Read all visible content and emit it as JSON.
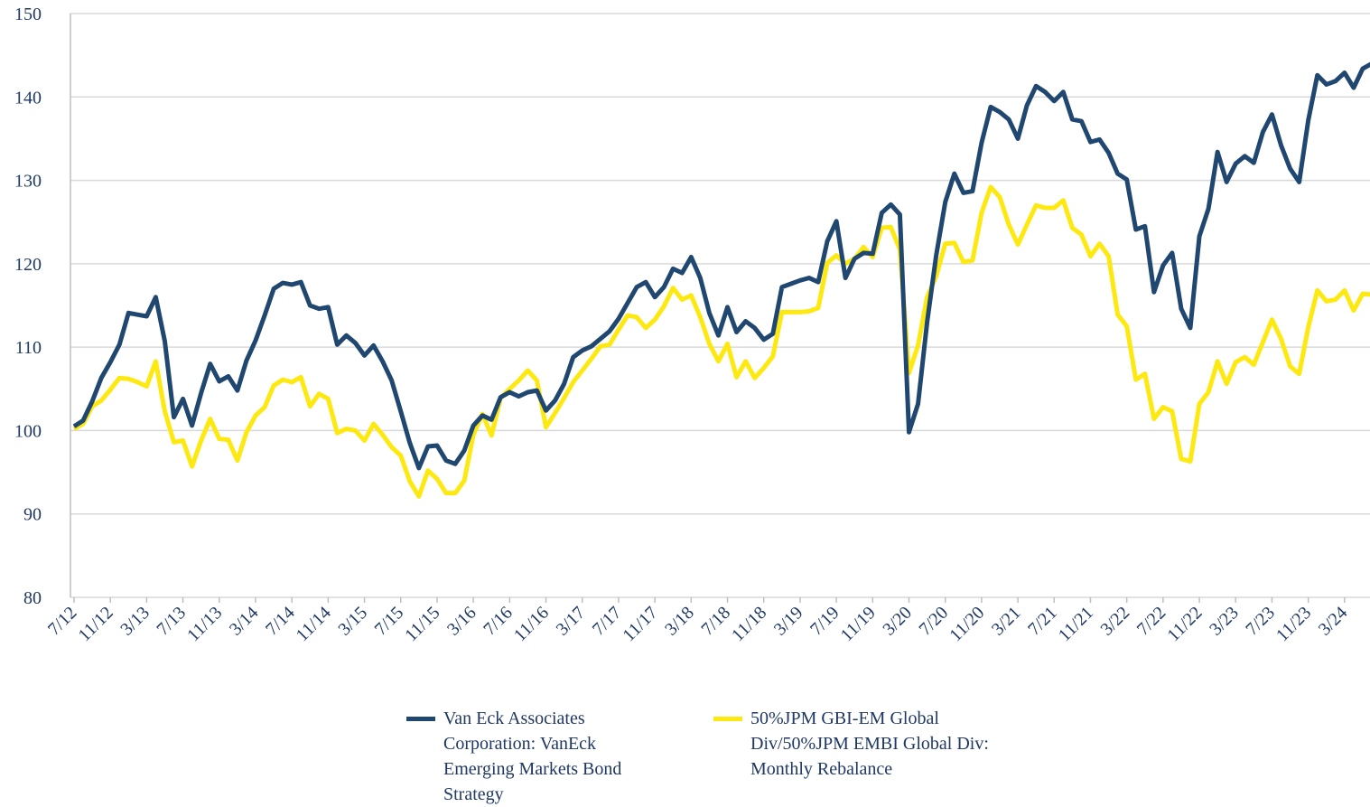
{
  "chart_data": {
    "type": "line",
    "categories": [
      "7/12",
      null,
      null,
      null,
      "11/12",
      null,
      null,
      null,
      "3/13",
      null,
      null,
      null,
      "7/13",
      null,
      null,
      null,
      "11/13",
      null,
      null,
      null,
      "3/14",
      null,
      null,
      null,
      "7/14",
      null,
      null,
      null,
      "11/14",
      null,
      null,
      null,
      "3/15",
      null,
      null,
      null,
      "7/15",
      null,
      null,
      null,
      "11/15",
      null,
      null,
      null,
      "3/16",
      null,
      null,
      null,
      "7/16",
      null,
      null,
      null,
      "11/16",
      null,
      null,
      null,
      "3/17",
      null,
      null,
      null,
      "7/17",
      null,
      null,
      null,
      "11/17",
      null,
      null,
      null,
      "3/18",
      null,
      null,
      null,
      "7/18",
      null,
      null,
      null,
      "11/18",
      null,
      null,
      null,
      "3/19",
      null,
      null,
      null,
      "7/19",
      null,
      null,
      null,
      "11/19",
      null,
      null,
      null,
      "3/20",
      null,
      null,
      null,
      "7/20",
      null,
      null,
      null,
      "11/20",
      null,
      null,
      null,
      "3/21",
      null,
      null,
      null,
      "7/21",
      null,
      null,
      null,
      "11/21",
      null,
      null,
      null,
      "3/22",
      null,
      null,
      null,
      "7/22",
      null,
      null,
      null,
      "11/22",
      null,
      null,
      null,
      "3/23",
      null,
      null,
      null,
      "7/23",
      null,
      null,
      null,
      "11/23",
      null,
      null,
      null,
      "3/24",
      null,
      null,
      null
    ],
    "series": [
      {
        "name": "Van Eck Associates Corporation: VanEck Emerging Markets Bond Strategy",
        "color": "#1f4770",
        "values": [
          100.5,
          101.2,
          103.5,
          106.3,
          108.2,
          110.3,
          114.1,
          113.9,
          113.7,
          116.0,
          110.7,
          101.6,
          103.8,
          100.6,
          104.5,
          108.0,
          105.9,
          106.5,
          104.8,
          108.4,
          110.8,
          113.8,
          117.0,
          117.7,
          117.5,
          117.8,
          115.0,
          114.6,
          114.8,
          110.3,
          111.4,
          110.5,
          109.0,
          110.2,
          108.3,
          106.0,
          102.3,
          98.5,
          95.5,
          98.1,
          98.2,
          96.4,
          96.0,
          97.6,
          100.6,
          101.8,
          101.3,
          104.0,
          104.6,
          104.1,
          104.6,
          104.8,
          102.4,
          103.6,
          105.6,
          108.8,
          109.6,
          110.1,
          111.0,
          111.9,
          113.4,
          115.3,
          117.2,
          117.8,
          116.0,
          117.2,
          119.4,
          118.9,
          120.8,
          118.3,
          114.1,
          111.4,
          114.8,
          111.8,
          113.1,
          112.3,
          110.9,
          111.6,
          117.2,
          117.6,
          118.0,
          118.3,
          117.8,
          122.7,
          125.1,
          118.3,
          120.6,
          121.3,
          121.2,
          126.1,
          127.1,
          125.9,
          99.8,
          103.2,
          113.0,
          121.0,
          127.4,
          130.8,
          128.5,
          128.7,
          134.5,
          138.8,
          138.2,
          137.3,
          135.0,
          139.0,
          141.3,
          140.6,
          139.5,
          140.6,
          137.3,
          137.1,
          134.6,
          134.9,
          133.3,
          130.8,
          130.1,
          124.1,
          124.5,
          116.6,
          119.8,
          121.3,
          114.6,
          112.3,
          123.3,
          126.6,
          133.4,
          129.8,
          132.0,
          132.9,
          132.1,
          135.8,
          137.9,
          134.2,
          131.4,
          129.8,
          137.2,
          142.6,
          141.5,
          141.9,
          142.9,
          141.1,
          143.4,
          144.0
        ]
      },
      {
        "name": "50%JPM GBI-EM Global Div/50%JPM EMBI Global Div: Monthly Rebalance",
        "color": "#fde910",
        "values": [
          100.2,
          100.8,
          102.9,
          103.6,
          104.9,
          106.3,
          106.2,
          105.8,
          105.3,
          108.3,
          102.3,
          98.6,
          98.8,
          95.7,
          98.8,
          101.4,
          99.0,
          98.9,
          96.4,
          99.8,
          101.8,
          102.8,
          105.4,
          106.1,
          105.8,
          106.4,
          102.9,
          104.4,
          103.8,
          99.7,
          100.2,
          100.0,
          98.8,
          100.8,
          99.5,
          98.0,
          97.0,
          93.9,
          92.1,
          95.2,
          94.2,
          92.5,
          92.5,
          94.0,
          99.5,
          102.0,
          99.4,
          103.9,
          105.0,
          106.0,
          107.2,
          106.0,
          100.4,
          102.1,
          103.9,
          105.8,
          107.2,
          108.6,
          110.1,
          110.3,
          112.1,
          113.8,
          113.6,
          112.3,
          113.3,
          114.9,
          117.1,
          115.7,
          116.2,
          113.6,
          110.4,
          108.3,
          110.4,
          106.4,
          108.3,
          106.3,
          107.5,
          108.9,
          114.2,
          114.2,
          114.2,
          114.3,
          114.7,
          120.1,
          121.0,
          120.0,
          120.6,
          122.0,
          120.8,
          124.3,
          124.4,
          121.7,
          106.9,
          110.2,
          116.0,
          118.5,
          122.4,
          122.5,
          120.2,
          120.4,
          126.1,
          129.2,
          128.0,
          124.7,
          122.3,
          124.7,
          127.0,
          126.7,
          126.7,
          127.6,
          124.3,
          123.5,
          120.9,
          122.4,
          120.9,
          113.9,
          112.5,
          106.1,
          106.8,
          101.4,
          102.8,
          102.3,
          96.6,
          96.3,
          103.2,
          104.6,
          108.3,
          105.6,
          108.2,
          108.8,
          107.9,
          110.6,
          113.3,
          111.0,
          107.7,
          106.8,
          112.4,
          116.8,
          115.5,
          115.7,
          116.8,
          114.4,
          116.4,
          116.3
        ]
      }
    ],
    "ylim": [
      80,
      150
    ],
    "yticks": [
      80,
      90,
      100,
      110,
      120,
      130,
      140,
      150
    ],
    "grid": true,
    "legend": "bottom"
  }
}
